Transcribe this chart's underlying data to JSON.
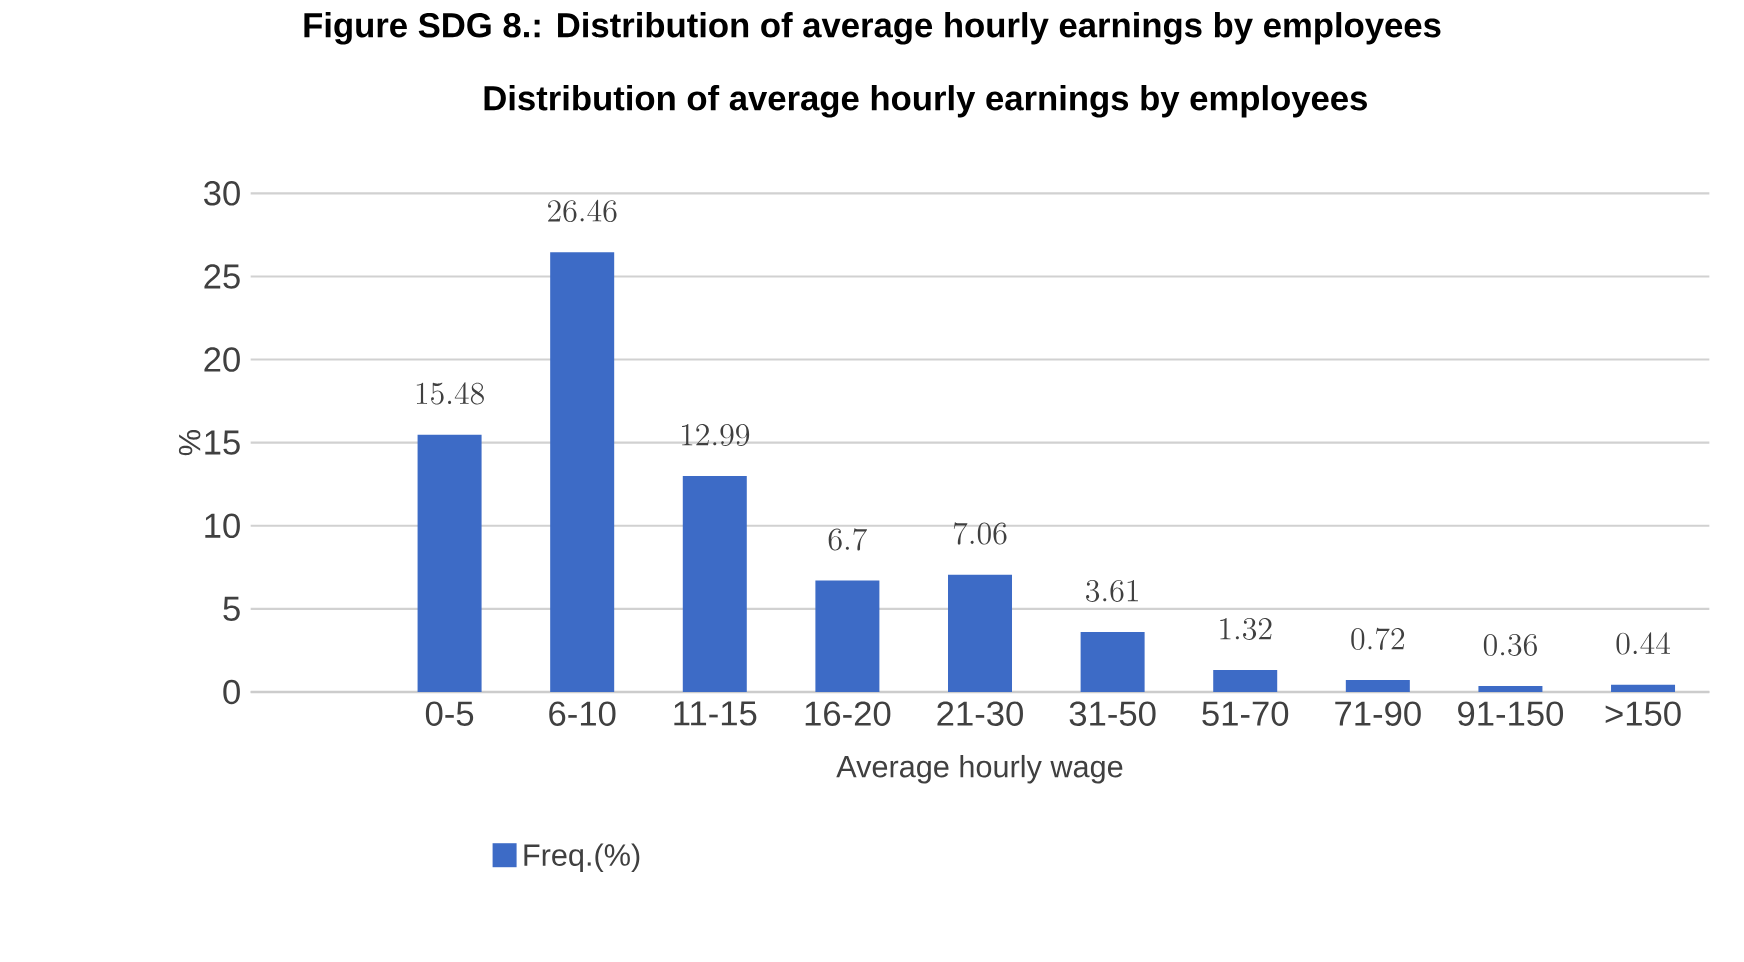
{
  "chart_data": {
    "type": "bar",
    "annotations": [
      "Figure SDG 8.: Distribution of average hourly earnings by employees"
    ],
    "title": "Distribution of average hourly earnings by employees",
    "xlabel": "Average hourly wage",
    "ylabel": "%",
    "categories": [
      null,
      "0-5",
      "6-10",
      "11-15",
      "16-20",
      "21-30",
      "31-50",
      "51-70",
      "71-90",
      "91-150",
      ">150"
    ],
    "series": [
      {
        "name": "Freq.(%)",
        "color": "#3d6bc6",
        "values": [
          null,
          15.48,
          26.46,
          12.99,
          6.7,
          7.06,
          3.61,
          1.32,
          0.72,
          0.36,
          0.44
        ]
      }
    ],
    "ylim": [
      0,
      30
    ],
    "yticks": [
      0,
      5,
      10,
      15,
      20,
      25,
      30
    ],
    "grid": "y",
    "legend": "bottom left",
    "data_labels": true
  }
}
